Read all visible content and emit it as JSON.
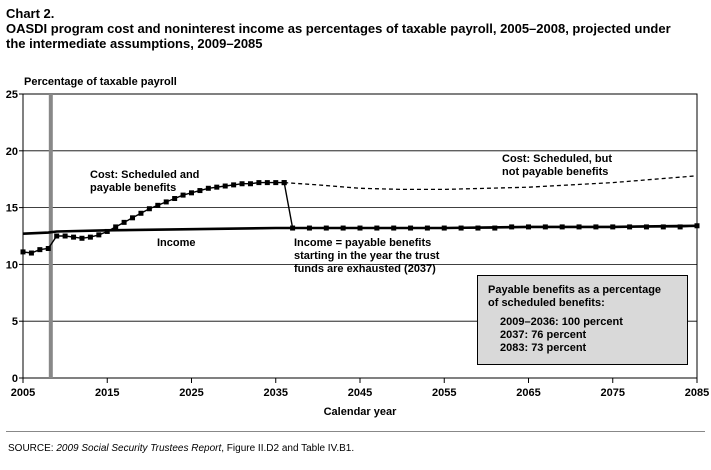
{
  "header": {
    "chart_label": "Chart 2.",
    "title_line1": "OASDI program cost and noninterest income as percentages of taxable payroll, 2005–2008, projected under",
    "title_line2": "the intermediate assumptions, 2009–2085"
  },
  "source": {
    "prefix": "SOURCE: ",
    "report": "2009 Social Security Trustees Report",
    "suffix": ", Figure II.D2 and Table IV.B1."
  },
  "callout": {
    "title_line1": "Payable benefits as a percentage",
    "title_line2": "of scheduled benefits:",
    "items": [
      "2009–2036: 100 percent",
      "2037: 76 percent",
      "2083: 73 percent"
    ]
  },
  "chart_data": {
    "type": "line",
    "title": "OASDI program cost and noninterest income as percentages of taxable payroll, 2005–2008, projected under the intermediate assumptions, 2009–2085",
    "xlabel": "Calendar year",
    "ylabel": "Percentage of taxable payroll",
    "xlim": [
      2005,
      2085
    ],
    "ylim": [
      0,
      25
    ],
    "x_ticks": [
      2005,
      2015,
      2025,
      2035,
      2045,
      2055,
      2065,
      2075,
      2085
    ],
    "y_ticks": [
      0,
      5,
      10,
      15,
      20,
      25
    ],
    "grid": "horizontal",
    "historical_divider_year": 2008,
    "annotations": [
      {
        "text": [
          "Cost: Scheduled and",
          "payable benefits"
        ]
      },
      {
        "text": [
          "Cost: Scheduled, but",
          "not payable benefits"
        ]
      },
      {
        "text": [
          "Income"
        ]
      },
      {
        "text": [
          "Income = payable benefits",
          "starting in the year the trust",
          "funds are exhausted (2037)"
        ]
      }
    ],
    "series": [
      {
        "name": "Cost: Scheduled and payable benefits",
        "style": "solid-square-markers",
        "x": [
          2005,
          2006,
          2007,
          2008,
          2009,
          2010,
          2011,
          2012,
          2013,
          2014,
          2015,
          2016,
          2017,
          2018,
          2019,
          2020,
          2021,
          2022,
          2023,
          2024,
          2025,
          2026,
          2027,
          2028,
          2029,
          2030,
          2031,
          2032,
          2033,
          2034,
          2035,
          2036
        ],
        "y": [
          11.1,
          11.0,
          11.3,
          11.4,
          12.5,
          12.5,
          12.4,
          12.3,
          12.4,
          12.6,
          12.9,
          13.3,
          13.7,
          14.1,
          14.5,
          14.9,
          15.2,
          15.5,
          15.8,
          16.1,
          16.3,
          16.5,
          16.7,
          16.8,
          16.9,
          17.0,
          17.1,
          17.1,
          17.2,
          17.2,
          17.2,
          17.2
        ]
      },
      {
        "name": "Cost: Scheduled, but not payable benefits",
        "style": "dashed",
        "x": [
          2036,
          2040,
          2045,
          2050,
          2055,
          2060,
          2065,
          2070,
          2075,
          2080,
          2085
        ],
        "y": [
          17.2,
          17.0,
          16.7,
          16.6,
          16.6,
          16.7,
          16.8,
          17.0,
          17.2,
          17.5,
          17.8
        ]
      },
      {
        "name": "Income",
        "style": "solid-thick",
        "x": [
          2005,
          2008,
          2009,
          2015,
          2025,
          2035,
          2045,
          2055,
          2065,
          2075,
          2085
        ],
        "y": [
          12.7,
          12.8,
          12.9,
          13.0,
          13.1,
          13.2,
          13.2,
          13.2,
          13.3,
          13.3,
          13.4
        ]
      },
      {
        "name": "Income = payable benefits",
        "style": "solid-square-markers",
        "x": [
          2036,
          2037,
          2039,
          2041,
          2043,
          2045,
          2047,
          2049,
          2051,
          2053,
          2055,
          2057,
          2059,
          2061,
          2063,
          2065,
          2067,
          2069,
          2071,
          2073,
          2075,
          2077,
          2079,
          2081,
          2083,
          2085
        ],
        "y": [
          17.2,
          13.2,
          13.2,
          13.2,
          13.2,
          13.2,
          13.2,
          13.2,
          13.2,
          13.2,
          13.2,
          13.2,
          13.2,
          13.2,
          13.3,
          13.3,
          13.3,
          13.3,
          13.3,
          13.3,
          13.3,
          13.3,
          13.3,
          13.3,
          13.3,
          13.4
        ]
      }
    ]
  }
}
